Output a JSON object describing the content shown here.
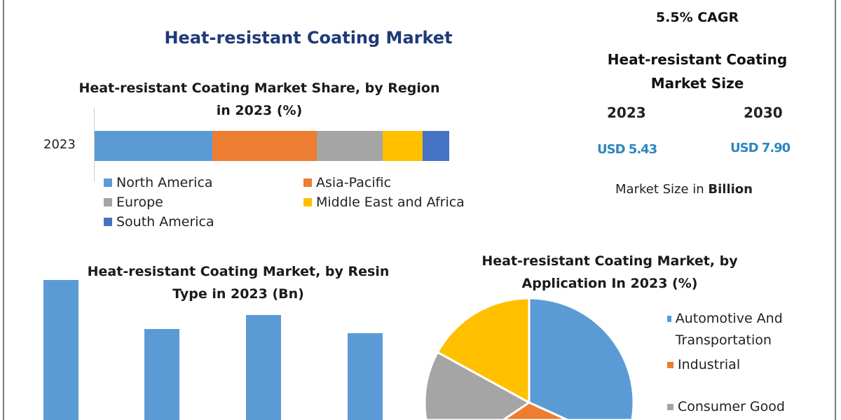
{
  "header": {
    "title": "Heat-resistant Coating Market"
  },
  "summary": {
    "cagr": "5.5% CAGR",
    "title": "Heat-resistant Coating Market Size",
    "years": [
      "2023",
      "2030"
    ],
    "values": [
      "USD 5.43",
      "USD 7.90"
    ],
    "unit_prefix": "Market Size in ",
    "unit_bold": "Billion",
    "value_color": "#2e86c1"
  },
  "chart_data": [
    {
      "type": "bar",
      "orientation": "horizontal-stacked",
      "title": "Heat-resistant Coating Market Share, by Region in 2023 (%)",
      "categories": [
        "2023"
      ],
      "series": [
        {
          "name": "North America",
          "values": [
            33.2
          ],
          "color": "#5b9bd5"
        },
        {
          "name": "Asia-Pacific",
          "values": [
            29.4
          ],
          "color": "#ed7d31"
        },
        {
          "name": "Europe",
          "values": [
            18.6
          ],
          "color": "#a5a5a5"
        },
        {
          "name": "Middle East and Africa",
          "values": [
            11.3
          ],
          "color": "#ffc000"
        },
        {
          "name": "South America",
          "values": [
            7.5
          ],
          "color": "#4472c4"
        }
      ],
      "legend": "bottom"
    },
    {
      "type": "bar",
      "title": "Heat-resistant Coating Market, by Resin Type in 2023 (Bn)",
      "values_relative": [
        1.0,
        0.65,
        0.75,
        0.62
      ],
      "color": "#5b9bd5"
    },
    {
      "type": "pie",
      "title": "Heat-resistant Coating Market, by Application In 2023 (%)",
      "slices": [
        {
          "name": "Automotive And Transportation",
          "value": 44,
          "color": "#5b9bd5"
        },
        {
          "name": "Industrial",
          "value": 10,
          "color": "#ed7d31"
        },
        {
          "name": "Consumer Good",
          "value": 29,
          "color": "#a5a5a5"
        },
        {
          "name": "",
          "value": 17,
          "color": "#ffc000"
        }
      ],
      "legend": "right"
    }
  ]
}
